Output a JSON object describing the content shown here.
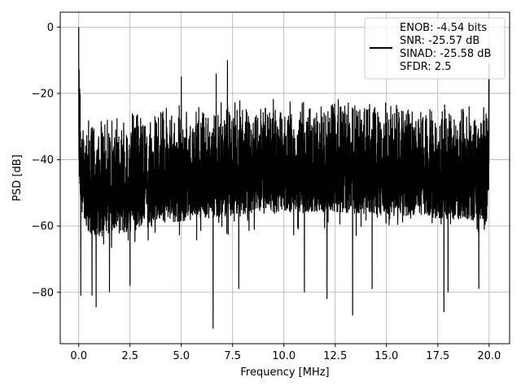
{
  "chart_data": {
    "type": "line",
    "title": "",
    "xlabel": "Frequency [MHz]",
    "ylabel": "PSD [dB]",
    "xlim": [
      -0.9,
      21.0
    ],
    "ylim": [
      -95.5,
      4.5
    ],
    "xticks": [
      0.0,
      2.5,
      5.0,
      7.5,
      10.0,
      12.5,
      15.0,
      17.5,
      20.0
    ],
    "xtick_labels": [
      "0.0",
      "2.5",
      "5.0",
      "7.5",
      "10.0",
      "12.5",
      "15.0",
      "17.5",
      "20.0"
    ],
    "yticks": [
      0,
      -20,
      -40,
      -60,
      -80
    ],
    "ytick_labels": [
      "0",
      "−20",
      "−40",
      "−60",
      "−80"
    ],
    "grid": true,
    "legend_position": "top-right",
    "series": [
      {
        "color": "#000000",
        "envelope": {
          "x": [
            0.0,
            0.1,
            0.5,
            1.0,
            2.5,
            4.0,
            5.0,
            7.5,
            10.0,
            12.5,
            15.0,
            17.5,
            19.9,
            20.0
          ],
          "upper": [
            0.0,
            -24,
            -28,
            -28,
            -26,
            -24,
            -23,
            -22,
            -21.5,
            -21.5,
            -22,
            -22.5,
            -23,
            -12
          ],
          "lower": [
            -48,
            -62,
            -68,
            -70,
            -68,
            -66,
            -65,
            -63,
            -62,
            -62,
            -63,
            -64,
            -65,
            -50
          ]
        },
        "spurs": [
          {
            "x": 0.0,
            "y": 0.0
          },
          {
            "x": 5.0,
            "y": -15.0
          },
          {
            "x": 6.7,
            "y": -14.0
          },
          {
            "x": 7.25,
            "y": -10.0
          },
          {
            "x": 20.0,
            "y": -11.0
          }
        ],
        "dips": [
          {
            "x": 0.1,
            "y": -81.0
          },
          {
            "x": 0.65,
            "y": -81.0
          },
          {
            "x": 0.85,
            "y": -84.5
          },
          {
            "x": 1.5,
            "y": -80.0
          },
          {
            "x": 2.5,
            "y": -78.0
          },
          {
            "x": 6.55,
            "y": -91.0
          },
          {
            "x": 7.8,
            "y": -79.0
          },
          {
            "x": 11.0,
            "y": -80.0
          },
          {
            "x": 12.1,
            "y": -82.0
          },
          {
            "x": 13.35,
            "y": -87.0
          },
          {
            "x": 14.3,
            "y": -79.0
          },
          {
            "x": 17.8,
            "y": -86.0
          },
          {
            "x": 18.0,
            "y": -80.0
          },
          {
            "x": 19.5,
            "y": -79.0
          }
        ]
      }
    ],
    "legend_lines": [
      "ENOB: -4.54 bits",
      "SNR: -25.57 dB",
      "SINAD: -25.58 dB",
      "SFDR: 2.5"
    ]
  }
}
